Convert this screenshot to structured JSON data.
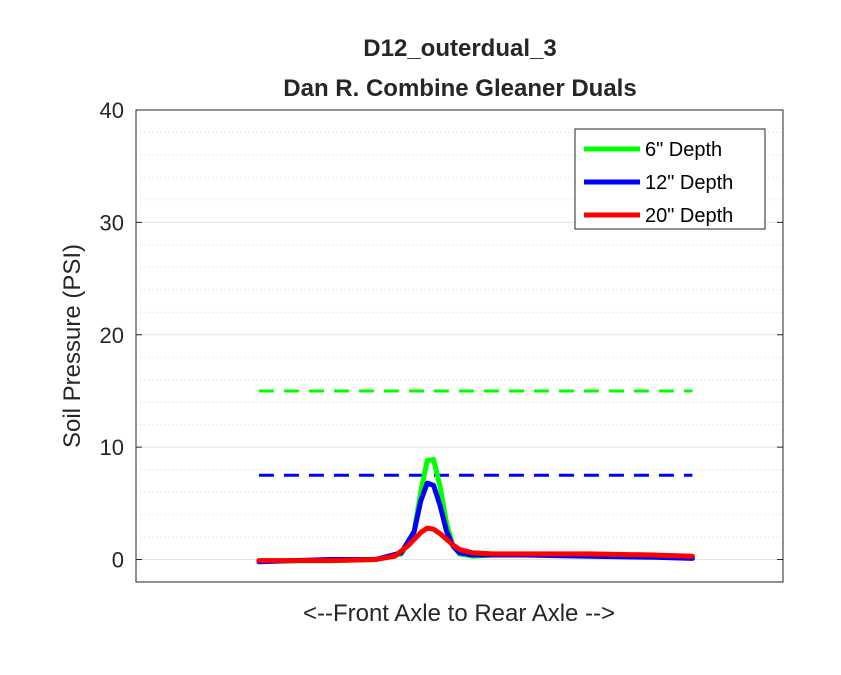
{
  "chart_data": {
    "type": "line",
    "title": [
      "D12_outerdual_3",
      "Dan R. Combine Gleaner  Duals"
    ],
    "xlabel": "<--Front Axle to Rear Axle -->",
    "ylabel": "Soil Pressure (PSI)",
    "ylim": [
      -2,
      40
    ],
    "xlim": [
      0,
      1
    ],
    "yticks": [
      0,
      10,
      20,
      30,
      40
    ],
    "grid": true,
    "minor_grid": true,
    "legend_position": "top-right",
    "series": [
      {
        "name": "6\" Depth",
        "color": "#00ff00",
        "x": [
          0.19,
          0.3,
          0.37,
          0.41,
          0.43,
          0.44,
          0.45,
          0.46,
          0.47,
          0.48,
          0.49,
          0.5,
          0.52,
          0.55,
          0.6,
          0.7,
          0.8,
          0.86
        ],
        "y": [
          -0.1,
          -0.1,
          0.0,
          0.5,
          2.5,
          6.0,
          8.8,
          8.9,
          6.5,
          3.2,
          1.2,
          0.5,
          0.3,
          0.4,
          0.4,
          0.4,
          0.3,
          0.2
        ]
      },
      {
        "name": "12\" Depth",
        "color": "#0000ff",
        "x": [
          0.19,
          0.3,
          0.37,
          0.41,
          0.43,
          0.44,
          0.45,
          0.46,
          0.47,
          0.48,
          0.49,
          0.5,
          0.52,
          0.55,
          0.6,
          0.7,
          0.8,
          0.86
        ],
        "y": [
          -0.2,
          0.0,
          0.0,
          0.6,
          2.5,
          5.2,
          6.8,
          6.6,
          4.8,
          2.5,
          1.2,
          0.6,
          0.4,
          0.4,
          0.4,
          0.3,
          0.2,
          0.1
        ]
      },
      {
        "name": "20\" Depth",
        "color": "#ff0000",
        "x": [
          0.19,
          0.3,
          0.37,
          0.4,
          0.42,
          0.44,
          0.45,
          0.46,
          0.47,
          0.48,
          0.49,
          0.5,
          0.52,
          0.55,
          0.6,
          0.7,
          0.8,
          0.86
        ],
        "y": [
          -0.1,
          -0.1,
          0.0,
          0.3,
          1.2,
          2.4,
          2.8,
          2.7,
          2.3,
          1.8,
          1.3,
          0.9,
          0.6,
          0.5,
          0.5,
          0.5,
          0.4,
          0.3
        ]
      }
    ],
    "reference_lines": [
      {
        "color": "#00ff00",
        "y": 15,
        "x": [
          0.19,
          0.86
        ],
        "style": "dashed"
      },
      {
        "color": "#0000ff",
        "y": 7.5,
        "x": [
          0.19,
          0.86
        ],
        "style": "dashed"
      }
    ]
  }
}
